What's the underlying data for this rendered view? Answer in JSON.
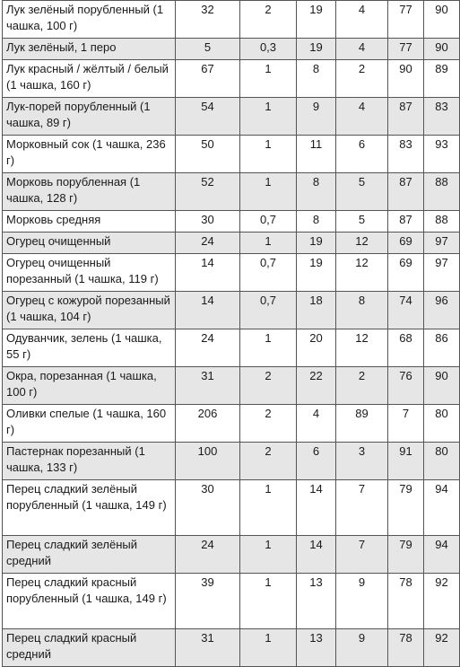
{
  "table": {
    "rows": [
      {
        "name": "Лук зелёный порубленный (1 чашка, 100 г)",
        "c1": "32",
        "c2": "2",
        "c3": "19",
        "c4": "4",
        "c5": "77",
        "c6": "90"
      },
      {
        "name": "Лук зелёный, 1 перо",
        "c1": "5",
        "c2": "0,3",
        "c3": "19",
        "c4": "4",
        "c5": "77",
        "c6": "90"
      },
      {
        "name": "Лук красный / жёлтый / белый (1 чашка, 160 г)",
        "c1": "67",
        "c2": "1",
        "c3": "8",
        "c4": "2",
        "c5": "90",
        "c6": "89"
      },
      {
        "name": "Лук-порей порубленный (1 чашка, 89 г)",
        "c1": "54",
        "c2": "1",
        "c3": "9",
        "c4": "4",
        "c5": "87",
        "c6": "83"
      },
      {
        "name": "Морковный сок (1 чашка, 236 г)",
        "c1": "50",
        "c2": "1",
        "c3": "11",
        "c4": "6",
        "c5": "83",
        "c6": "93"
      },
      {
        "name": "Морковь порубленная (1 чашка, 128 г)",
        "c1": "52",
        "c2": "1",
        "c3": "8",
        "c4": "5",
        "c5": "87",
        "c6": "88"
      },
      {
        "name": "Морковь средняя",
        "c1": "30",
        "c2": "0,7",
        "c3": "8",
        "c4": "5",
        "c5": "87",
        "c6": "88"
      },
      {
        "name": "Огурец очищенный",
        "c1": "24",
        "c2": "1",
        "c3": "19",
        "c4": "12",
        "c5": "69",
        "c6": "97"
      },
      {
        "name": "Огурец очищенный порезанный (1 чашка, 119 г)",
        "c1": "14",
        "c2": "0,7",
        "c3": "19",
        "c4": "12",
        "c5": "69",
        "c6": "97"
      },
      {
        "name": "Огурец с кожурой порезанный (1 чашка, 104 г)",
        "c1": "14",
        "c2": "0,7",
        "c3": "18",
        "c4": "8",
        "c5": "74",
        "c6": "96"
      },
      {
        "name": "Одуванчик, зелень (1 чашка, 55 г)",
        "c1": "24",
        "c2": "1",
        "c3": "20",
        "c4": "12",
        "c5": "68",
        "c6": "86"
      },
      {
        "name": "Окра, порезанная (1 чашка, 100 г)",
        "c1": "31",
        "c2": "2",
        "c3": "22",
        "c4": "2",
        "c5": "76",
        "c6": "90"
      },
      {
        "name": "Оливки спелые (1 чашка, 160 г)",
        "c1": "206",
        "c2": "2",
        "c3": "4",
        "c4": "89",
        "c5": "7",
        "c6": "80"
      },
      {
        "name": "Пастернак порезанный (1 чашка, 133 г)",
        "c1": "100",
        "c2": "2",
        "c3": "6",
        "c4": "3",
        "c5": "91",
        "c6": "80"
      },
      {
        "name": "Перец сладкий зелёный порубленный (1 чашка, 149 г)",
        "c1": "30",
        "c2": "1",
        "c3": "14",
        "c4": "7",
        "c5": "79",
        "c6": "94"
      },
      {
        "name": "Перец сладкий зелёный средний",
        "c1": "24",
        "c2": "1",
        "c3": "14",
        "c4": "7",
        "c5": "79",
        "c6": "94"
      },
      {
        "name": "Перец сладкий красный порубленный (1 чашка, 149 г)",
        "c1": "39",
        "c2": "1",
        "c3": "13",
        "c4": "9",
        "c5": "78",
        "c6": "92"
      },
      {
        "name": "Перец сладкий красный средний",
        "c1": "31",
        "c2": "1",
        "c3": "13",
        "c4": "9",
        "c5": "78",
        "c6": "92"
      }
    ]
  }
}
